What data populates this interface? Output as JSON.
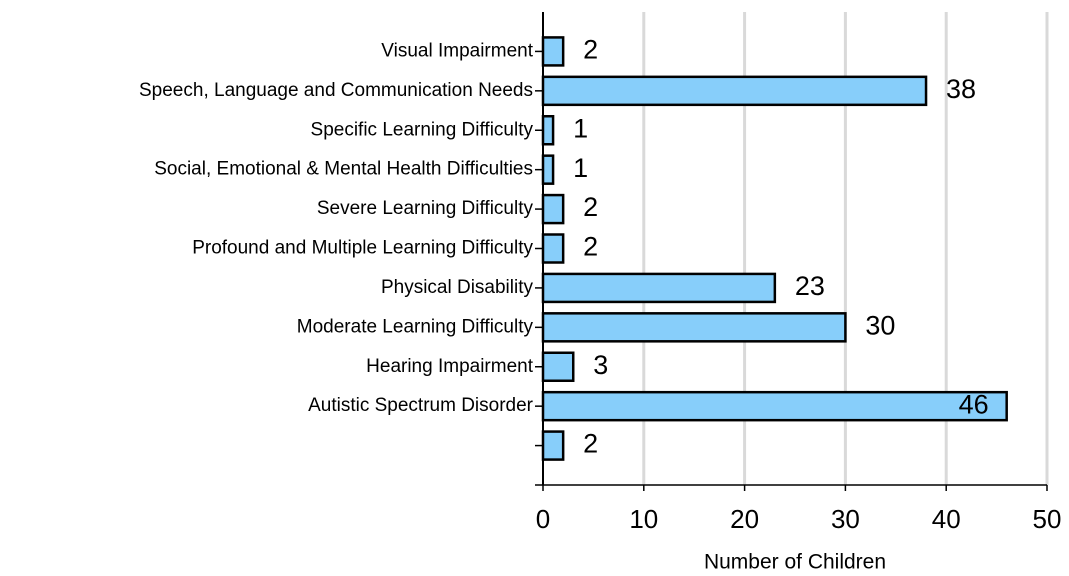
{
  "chart_data": {
    "type": "bar",
    "orientation": "horizontal",
    "x_label": "Number of Children",
    "categories": [
      "Visual Impairment",
      "Speech, Language and Communication Needs",
      "Specific Learning Difficulty",
      "Social, Emotional & Mental Health Difficulties",
      "Severe Learning Difficulty",
      "Profound and Multiple Learning Difficulty",
      "Physical Disability",
      "Moderate Learning Difficulty",
      "Hearing Impairment",
      "Autistic Spectrum Disorder",
      null
    ],
    "values": [
      2,
      38,
      1,
      1,
      2,
      2,
      23,
      30,
      3,
      46,
      2
    ],
    "color": "#87cefa",
    "xlim": [
      0,
      50
    ],
    "xticks": [
      0,
      10,
      20,
      30,
      40,
      50
    ],
    "grid": true
  }
}
